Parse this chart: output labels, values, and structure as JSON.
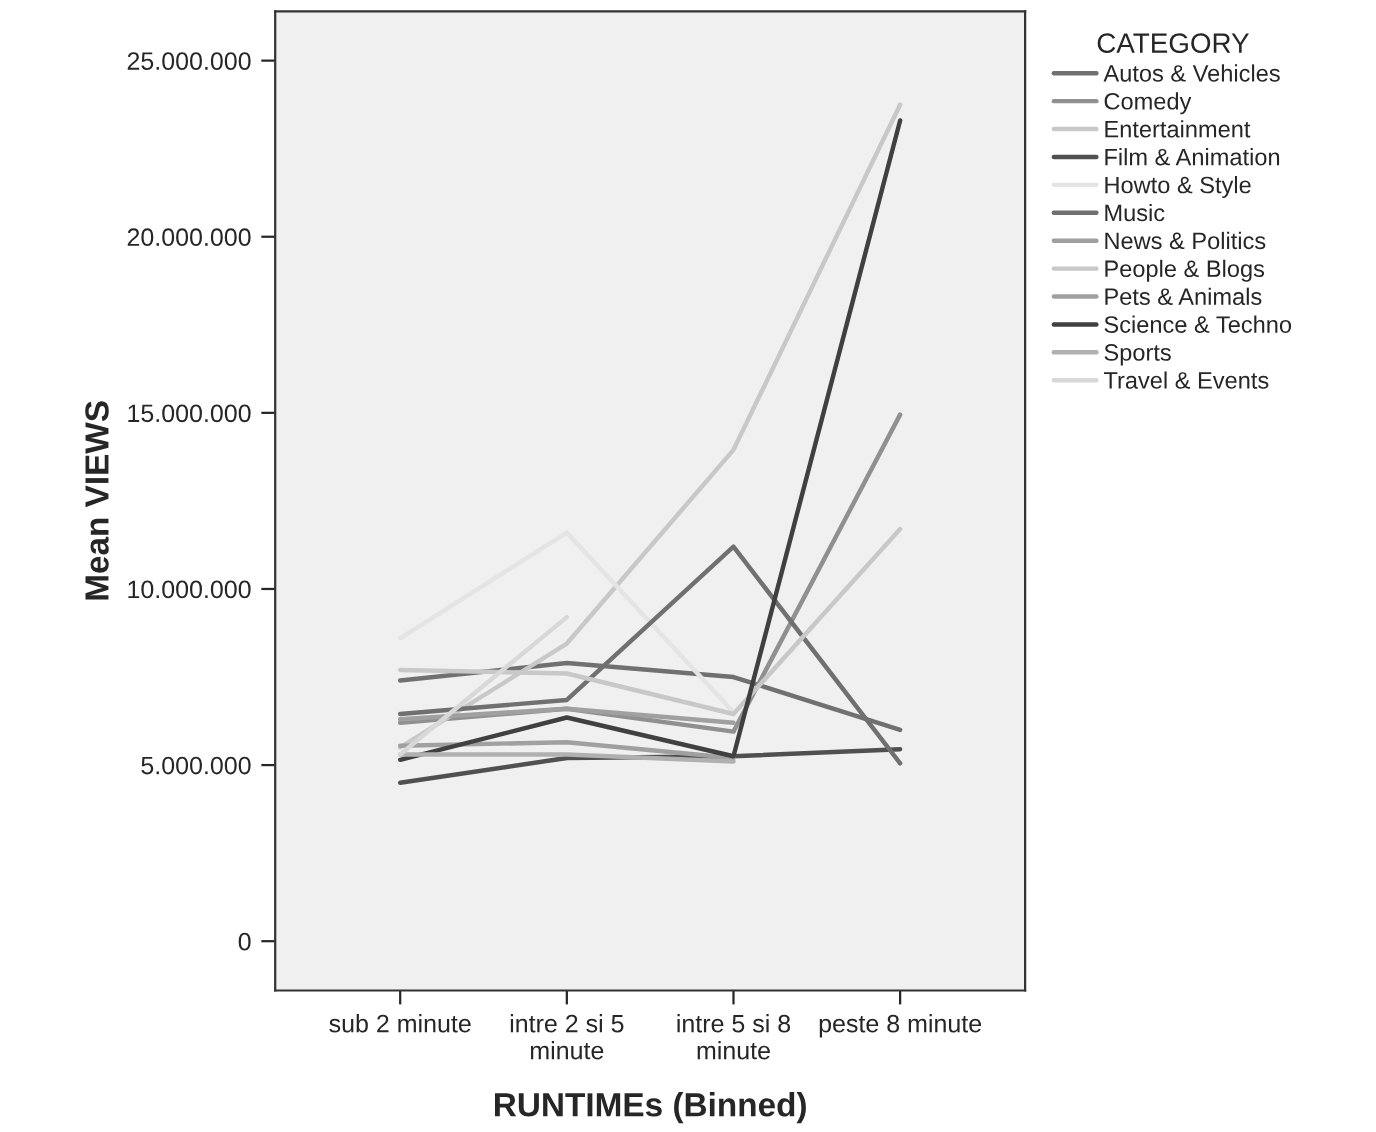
{
  "chart_data": {
    "type": "line",
    "xlabel": "RUNTIMEs (Binned)",
    "ylabel": "Mean VIEWS",
    "legend_title": "CATEGORY",
    "legend": "right",
    "grid": false,
    "categories": [
      "sub 2 minute",
      "intre 2 si 5\nminute",
      "intre 5 si 8\nminute",
      "peste 8 minute"
    ],
    "ylim": [
      -1400000,
      26400000
    ],
    "yticks": [
      {
        "value": 0,
        "label": "0"
      },
      {
        "value": 5000000,
        "label": "5.000.000"
      },
      {
        "value": 10000000,
        "label": "10.000.000"
      },
      {
        "value": 15000000,
        "label": "15.000.000"
      },
      {
        "value": 20000000,
        "label": "20.000.000"
      },
      {
        "value": 25000000,
        "label": "25.000.000"
      }
    ],
    "series": [
      {
        "name": "Autos & Vehicles",
        "color": "#707070",
        "values": [
          7400000,
          7900000,
          7500000,
          6000000
        ]
      },
      {
        "name": "Comedy",
        "color": "#909090",
        "values": [
          6200000,
          6600000,
          5950000,
          14950000
        ]
      },
      {
        "name": "Entertainment",
        "color": "#c8c8c8",
        "values": [
          5500000,
          8450000,
          13950000,
          23750000
        ]
      },
      {
        "name": "Film & Animation",
        "color": "#505050",
        "values": [
          4500000,
          5200000,
          5250000,
          5450000
        ]
      },
      {
        "name": "Howto & Style",
        "color": "#e4e4e4",
        "values": [
          8600000,
          11600000,
          6500000,
          null
        ]
      },
      {
        "name": "Music",
        "color": "#707070",
        "values": [
          6450000,
          6850000,
          11200000,
          5050000
        ]
      },
      {
        "name": "News & Politics",
        "color": "#a0a0a0",
        "values": [
          6300000,
          6600000,
          6200000,
          null
        ]
      },
      {
        "name": "People & Blogs",
        "color": "#c8c8c8",
        "values": [
          7700000,
          7600000,
          6450000,
          11700000
        ]
      },
      {
        "name": "Pets & Animals",
        "color": "#a0a0a0",
        "values": [
          5550000,
          5650000,
          5200000,
          null
        ]
      },
      {
        "name": "Science & Techno",
        "color": "#404040",
        "values": [
          5150000,
          6350000,
          5250000,
          23300000
        ]
      },
      {
        "name": "Sports",
        "color": "#b0b0b0",
        "values": [
          5300000,
          5300000,
          5100000,
          null
        ]
      },
      {
        "name": "Travel & Events",
        "color": "#d8d8d8",
        "values": [
          5300000,
          9200000,
          null,
          null
        ]
      }
    ]
  }
}
